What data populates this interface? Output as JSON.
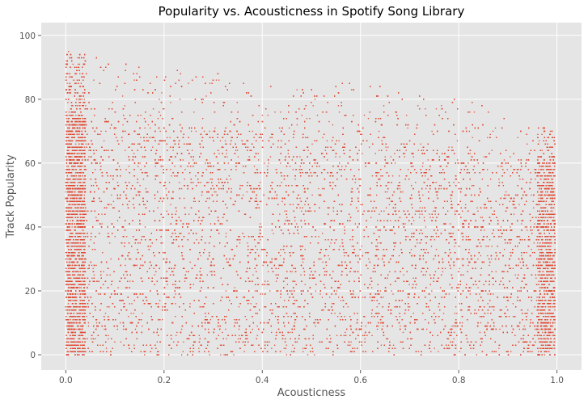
{
  "chart_data": {
    "type": "scatter",
    "title": "Popularity vs. Acousticness in Spotify Song Library",
    "xlabel": "Acousticness",
    "ylabel": "Track Popularity",
    "xlim": [
      -0.05,
      1.05
    ],
    "ylim": [
      -4.8,
      104
    ],
    "x_ticks": [
      0.0,
      0.2,
      0.4,
      0.6,
      0.8,
      1.0
    ],
    "x_tick_labels": [
      "0.0",
      "0.2",
      "0.4",
      "0.6",
      "0.8",
      "1.0"
    ],
    "y_ticks": [
      0,
      20,
      40,
      60,
      80,
      100
    ],
    "y_tick_labels": [
      "0",
      "20",
      "40",
      "60",
      "80",
      "100"
    ],
    "grid": true,
    "style": "ggplot",
    "colors": {
      "plot_background": "#e5e5e5",
      "grid": "#ffffff",
      "marker": "#e24a33",
      "text": "#555555",
      "title": "#000000"
    },
    "series": [
      {
        "marker": "dot",
        "x_range": [
          0.0,
          0.996
        ],
        "y_range": [
          0,
          100
        ],
        "approx_points": 160000,
        "integer_y": true,
        "density_note": "densest for y between 0 and 70; upper envelope declines from about 95 near x=0 to about 70 near x=1; isolated outliers up to 100",
        "envelope": [
          {
            "x": 0.0,
            "y": 95
          },
          {
            "x": 0.1,
            "y": 92
          },
          {
            "x": 0.2,
            "y": 90
          },
          {
            "x": 0.3,
            "y": 88
          },
          {
            "x": 0.4,
            "y": 85
          },
          {
            "x": 0.5,
            "y": 84
          },
          {
            "x": 0.6,
            "y": 86
          },
          {
            "x": 0.7,
            "y": 82
          },
          {
            "x": 0.8,
            "y": 80
          },
          {
            "x": 0.9,
            "y": 76
          },
          {
            "x": 1.0,
            "y": 70
          }
        ],
        "dense_ceiling": [
          {
            "x": 0.0,
            "y": 76
          },
          {
            "x": 0.2,
            "y": 72
          },
          {
            "x": 0.4,
            "y": 70
          },
          {
            "x": 0.6,
            "y": 70
          },
          {
            "x": 0.8,
            "y": 64
          },
          {
            "x": 1.0,
            "y": 60
          }
        ]
      }
    ]
  }
}
